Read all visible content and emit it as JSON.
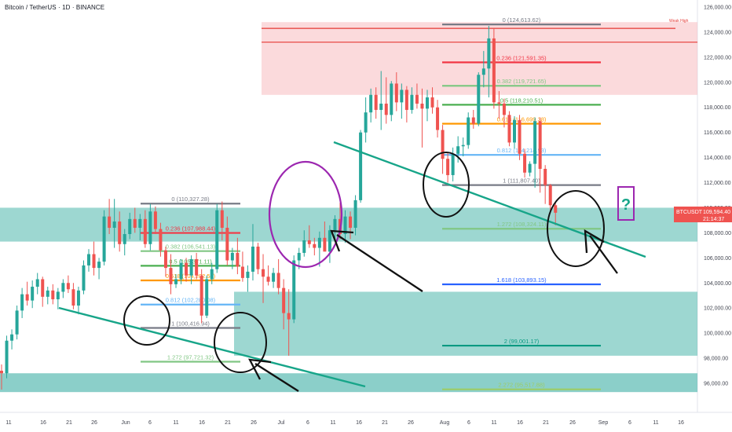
{
  "header": {
    "title": "Bitcoin / TetherUS · 1D · BINANCE"
  },
  "colors": {
    "up": "#26a69a",
    "down": "#ef5350",
    "zone_green": "#4db6ac",
    "zone_red": "#f8bbc0",
    "red_line": "#e53935",
    "trend": "#17a589",
    "circle": "#111111",
    "purple": "#9c27b0"
  },
  "price_axis": {
    "ticks": [
      "126,000.00",
      "124,000.00",
      "122,000.00",
      "120,000.00",
      "118,000.00",
      "116,000.00",
      "114,000.00",
      "112,000.00",
      "110,000.00",
      "108,000.00",
      "106,000.00",
      "104,000.00",
      "102,000.00",
      "100,000.00",
      "98,000.00",
      "96,000.00"
    ],
    "current_label": "BTCUSDT",
    "current_price": "109,594.40",
    "countdown": "21:14:37"
  },
  "annotations": {
    "week_high": "Weak High",
    "question": "?"
  },
  "fib_june": [
    {
      "level": "0 (110,327.28)",
      "value": 110327.28,
      "color": "#787b86"
    },
    {
      "level": "0.236 (107,988.44)",
      "value": 107988.44,
      "color": "#f23645"
    },
    {
      "level": "0.382 (106,541.13)",
      "value": 106541.13,
      "color": "#81c784"
    },
    {
      "level": "0.5 (105,371.11)",
      "value": 105371.11,
      "color": "#4caf50"
    },
    {
      "level": "0.618 (104,202.58)",
      "value": 104202.58,
      "color": "#ff9800"
    },
    {
      "level": "0.812 (102,280.08)",
      "value": 102280.08,
      "color": "#64b5f6"
    },
    {
      "level": "1 (100,416.94)",
      "value": 100416.94,
      "color": "#787b86"
    },
    {
      "level": "1.272 (97,721.32)",
      "value": 97721.32,
      "color": "#81c784"
    }
  ],
  "fib_aug": [
    {
      "level": "0 (124,613.62)",
      "value": 124613.62,
      "color": "#787b86"
    },
    {
      "level": "0.236 (121,591.35)",
      "value": 121591.35,
      "color": "#f23645"
    },
    {
      "level": "0.382 (119,721.65)",
      "value": 119721.65,
      "color": "#81c784"
    },
    {
      "level": "0.5 (118,210.51)",
      "value": 118210.51,
      "color": "#4caf50"
    },
    {
      "level": "0.618 (116,699.38)",
      "value": 116699.38,
      "color": "#ff9800"
    },
    {
      "level": "0.812 (114,214.93)",
      "value": 114214.93,
      "color": "#64b5f6"
    },
    {
      "level": "1 (111,807.40)",
      "value": 111807.4,
      "color": "#787b86"
    },
    {
      "level": "1.272 (108,324.11)",
      "value": 108324.11,
      "color": "#81c784"
    },
    {
      "level": "1.618 (103,893.15)",
      "value": 103893.15,
      "color": "#2962ff"
    },
    {
      "level": "2 (99,001.17)",
      "value": 99001.17,
      "color": "#089981"
    },
    {
      "level": "2.272 (95,517.88)",
      "value": 95517.88,
      "color": "#9ccc65"
    }
  ],
  "time_axis": [
    {
      "label": "11",
      "x": 11
    },
    {
      "label": "16",
      "x": 55
    },
    {
      "label": "21",
      "x": 88
    },
    {
      "label": "26",
      "x": 120
    },
    {
      "label": "Jun",
      "x": 160
    },
    {
      "label": "6",
      "x": 191
    },
    {
      "label": "11",
      "x": 224
    },
    {
      "label": "16",
      "x": 257
    },
    {
      "label": "21",
      "x": 290
    },
    {
      "label": "26",
      "x": 323
    },
    {
      "label": "Jul",
      "x": 358
    },
    {
      "label": "6",
      "x": 392
    },
    {
      "label": "11",
      "x": 424
    },
    {
      "label": "16",
      "x": 457
    },
    {
      "label": "21",
      "x": 490
    },
    {
      "label": "26",
      "x": 523
    },
    {
      "label": "Aug",
      "x": 566
    },
    {
      "label": "6",
      "x": 597
    },
    {
      "label": "11",
      "x": 629
    },
    {
      "label": "16",
      "x": 662
    },
    {
      "label": "21",
      "x": 695
    },
    {
      "label": "26",
      "x": 729
    },
    {
      "label": "Sep",
      "x": 768
    },
    {
      "label": "6",
      "x": 802
    },
    {
      "label": "11",
      "x": 835
    },
    {
      "label": "16",
      "x": 867
    }
  ],
  "chart_data": {
    "type": "candlestick",
    "title": "Bitcoin / TetherUS · 1D · BINANCE",
    "ylim": [
      94500,
      126700
    ],
    "candles": [
      [
        97000,
        97500,
        95500,
        96800
      ],
      [
        96800,
        99800,
        96400,
        99400
      ],
      [
        99400,
        100300,
        98700,
        99900
      ],
      [
        99900,
        102200,
        99500,
        101800
      ],
      [
        101800,
        103600,
        101200,
        103100
      ],
      [
        103100,
        104100,
        102200,
        102600
      ],
      [
        102600,
        104200,
        102000,
        103700
      ],
      [
        103700,
        104800,
        103100,
        104300
      ],
      [
        104300,
        104500,
        102100,
        102900
      ],
      [
        102900,
        103700,
        102300,
        103400
      ],
      [
        103400,
        103900,
        102300,
        102700
      ],
      [
        102700,
        103600,
        101900,
        103300
      ],
      [
        103300,
        104300,
        102800,
        104000
      ],
      [
        104000,
        104600,
        103200,
        103500
      ],
      [
        103500,
        104000,
        101900,
        102200
      ],
      [
        102200,
        103700,
        101500,
        103400
      ],
      [
        103400,
        105800,
        103100,
        105400
      ],
      [
        105400,
        106700,
        104900,
        106300
      ],
      [
        106300,
        107300,
        104600,
        105200
      ],
      [
        105200,
        106000,
        104300,
        105700
      ],
      [
        105700,
        109800,
        105400,
        109300
      ],
      [
        109300,
        110700,
        107900,
        108400
      ],
      [
        108400,
        110700,
        106800,
        108900
      ],
      [
        108900,
        109700,
        106500,
        107100
      ],
      [
        107100,
        108300,
        106200,
        107900
      ],
      [
        107900,
        109600,
        107500,
        109100
      ],
      [
        109100,
        110000,
        108000,
        108400
      ],
      [
        108400,
        109500,
        107400,
        109100
      ],
      [
        109100,
        109800,
        106800,
        107100
      ],
      [
        107100,
        110300,
        106600,
        109700
      ],
      [
        109700,
        110100,
        107900,
        108300
      ],
      [
        108300,
        108800,
        106100,
        106600
      ],
      [
        106600,
        106900,
        104500,
        105200
      ],
      [
        105200,
        106300,
        103100,
        103900
      ],
      [
        103900,
        104700,
        103600,
        104300
      ],
      [
        104300,
        105900,
        103900,
        105600
      ],
      [
        105600,
        106000,
        104100,
        104600
      ],
      [
        104600,
        106200,
        103900,
        105900
      ],
      [
        105900,
        106400,
        104300,
        104600
      ],
      [
        104600,
        105100,
        100800,
        101400
      ],
      [
        101400,
        104600,
        101200,
        104300
      ],
      [
        104300,
        105600,
        103900,
        105100
      ],
      [
        105100,
        110300,
        104800,
        109800
      ],
      [
        109800,
        110500,
        107400,
        108400
      ],
      [
        108400,
        109300,
        105400,
        105800
      ],
      [
        105800,
        106800,
        105100,
        106400
      ],
      [
        106400,
        107600,
        104700,
        105300
      ],
      [
        105300,
        106500,
        104100,
        104400
      ],
      [
        104400,
        105400,
        103300,
        104900
      ],
      [
        104900,
        108700,
        104200,
        106900
      ],
      [
        106900,
        107200,
        104700,
        105100
      ],
      [
        105100,
        106300,
        102400,
        104500
      ],
      [
        104500,
        105400,
        103800,
        104100
      ],
      [
        104100,
        105200,
        103600,
        104800
      ],
      [
        104800,
        105900,
        103100,
        103600
      ],
      [
        103600,
        104300,
        100300,
        101600
      ],
      [
        101600,
        103500,
        98200,
        101100
      ],
      [
        101100,
        106200,
        100800,
        105800
      ],
      [
        105800,
        106800,
        105100,
        106400
      ],
      [
        106400,
        108200,
        106100,
        107400
      ],
      [
        107400,
        108600,
        106800,
        107100
      ],
      [
        107100,
        107600,
        106200,
        106800
      ],
      [
        106800,
        108100,
        105300,
        107600
      ],
      [
        107600,
        108900,
        106700,
        106500
      ],
      [
        106500,
        108600,
        105600,
        108200
      ],
      [
        108200,
        109400,
        107300,
        109100
      ],
      [
        109100,
        110400,
        107500,
        107900
      ],
      [
        107900,
        109800,
        107200,
        109300
      ],
      [
        109300,
        109700,
        107500,
        108400
      ],
      [
        108400,
        111000,
        107800,
        110600
      ],
      [
        110600,
        116200,
        110400,
        116000
      ],
      [
        116000,
        118800,
        115200,
        117600
      ],
      [
        117600,
        119500,
        116800,
        119000
      ],
      [
        119000,
        119600,
        117100,
        117800
      ],
      [
        117800,
        120900,
        116200,
        118300
      ],
      [
        118300,
        120400,
        116700,
        117400
      ],
      [
        117400,
        120100,
        116900,
        119900
      ],
      [
        119900,
        120800,
        117700,
        118400
      ],
      [
        118400,
        119900,
        117100,
        119400
      ],
      [
        119400,
        119700,
        116800,
        117800
      ],
      [
        117800,
        119600,
        117500,
        119000
      ],
      [
        119000,
        119900,
        117900,
        118300
      ],
      [
        118300,
        119500,
        114800,
        117900
      ],
      [
        117900,
        119400,
        116900,
        118800
      ],
      [
        118800,
        119600,
        117500,
        118000
      ],
      [
        118000,
        118600,
        115600,
        116200
      ],
      [
        116200,
        116600,
        112700,
        113900
      ],
      [
        113900,
        114400,
        112000,
        112600
      ],
      [
        112600,
        114800,
        112100,
        114300
      ],
      [
        114300,
        115700,
        113600,
        114900
      ],
      [
        114900,
        115600,
        114100,
        115000
      ],
      [
        115000,
        117600,
        114700,
        117200
      ],
      [
        117200,
        117800,
        116300,
        116700
      ],
      [
        116700,
        120800,
        116500,
        120600
      ],
      [
        120600,
        122500,
        119600,
        121100
      ],
      [
        121100,
        124500,
        118800,
        123500
      ],
      [
        123500,
        124300,
        117900,
        118400
      ],
      [
        118400,
        119300,
        117100,
        118300
      ],
      [
        118300,
        118700,
        116400,
        117400
      ],
      [
        117400,
        117700,
        114900,
        115200
      ],
      [
        115200,
        117300,
        114700,
        117000
      ],
      [
        117000,
        117400,
        113800,
        114300
      ],
      [
        114300,
        114700,
        112400,
        112800
      ],
      [
        112800,
        113700,
        112500,
        113500
      ],
      [
        113500,
        117200,
        111600,
        116900
      ],
      [
        116900,
        117200,
        111200,
        113100
      ],
      [
        113100,
        113400,
        110300,
        111800
      ],
      [
        111800,
        111900,
        109600,
        110200
      ],
      [
        110200,
        110400,
        108600,
        109600
      ]
    ]
  }
}
